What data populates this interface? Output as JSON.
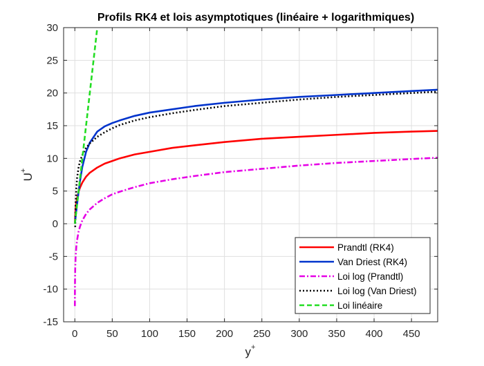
{
  "chart_data": {
    "type": "line",
    "title": "Profils RK4 et lois asymptotiques (linéaire + logarithmiques)",
    "xlabel": "y",
    "xlabel_superscript": "+",
    "ylabel": "U",
    "ylabel_superscript": "+",
    "xlim": [
      -15,
      485
    ],
    "ylim": [
      -15,
      30
    ],
    "xticks": [
      0,
      50,
      100,
      150,
      200,
      250,
      300,
      350,
      400,
      450
    ],
    "yticks": [
      -15,
      -10,
      -5,
      0,
      5,
      10,
      15,
      20,
      25,
      30
    ],
    "grid": true,
    "legend_position": "bottom-right",
    "series": [
      {
        "name": "Prandtl (RK4)",
        "color": "#ff0000",
        "style": "solid",
        "x": [
          0,
          1,
          2,
          3,
          5,
          7,
          10,
          15,
          20,
          30,
          40,
          50,
          60,
          80,
          100,
          130,
          160,
          200,
          250,
          300,
          350,
          400,
          450,
          485
        ],
        "y": [
          0,
          2.2,
          3.2,
          3.9,
          4.9,
          5.55,
          6.3,
          7.2,
          7.8,
          8.6,
          9.2,
          9.6,
          10.0,
          10.6,
          11.0,
          11.6,
          12.0,
          12.5,
          13.0,
          13.3,
          13.6,
          13.9,
          14.1,
          14.2
        ]
      },
      {
        "name": "Van Driest (RK4)",
        "color": "#0033cc",
        "style": "solid",
        "x": [
          0,
          1,
          2,
          3,
          5,
          7,
          10,
          15,
          20,
          30,
          40,
          50,
          60,
          80,
          100,
          130,
          160,
          200,
          250,
          300,
          350,
          400,
          450,
          485
        ],
        "y": [
          0,
          1.0,
          2.0,
          3.0,
          4.9,
          6.6,
          8.7,
          11.0,
          12.4,
          14.1,
          14.9,
          15.4,
          15.8,
          16.5,
          17.0,
          17.5,
          18.0,
          18.5,
          19.0,
          19.4,
          19.7,
          20.0,
          20.3,
          20.5
        ]
      },
      {
        "name": "Loi log (Prandtl)",
        "color": "#e600e6",
        "style": "dashdot",
        "x": [
          0.05,
          0.1,
          0.2,
          0.5,
          1,
          2,
          3,
          5,
          7,
          10,
          15,
          20,
          30,
          40,
          50,
          60,
          80,
          100,
          130,
          160,
          200,
          250,
          300,
          350,
          400,
          450,
          485
        ],
        "y": [
          -12.6,
          -10.9,
          -9.2,
          -6.9,
          -5.2,
          -3.5,
          -2.5,
          -1.2,
          -0.4,
          0.5,
          1.5,
          2.2,
          3.2,
          3.9,
          4.5,
          4.9,
          5.6,
          6.2,
          6.8,
          7.3,
          7.9,
          8.4,
          8.9,
          9.3,
          9.6,
          9.9,
          10.1
        ]
      },
      {
        "name": "Loi log (Van Driest)",
        "color": "#000000",
        "style": "dotted",
        "x": [
          0.5,
          1,
          2,
          3,
          5,
          7,
          10,
          15,
          20,
          30,
          40,
          50,
          60,
          80,
          100,
          130,
          160,
          200,
          250,
          300,
          350,
          400,
          450,
          485
        ],
        "y": [
          -0.5,
          3.0,
          5.5,
          7.0,
          8.6,
          9.6,
          10.5,
          11.6,
          12.3,
          13.3,
          14.0,
          14.6,
          15.1,
          15.8,
          16.3,
          16.9,
          17.4,
          18.0,
          18.5,
          19.0,
          19.4,
          19.7,
          20.0,
          20.2
        ]
      },
      {
        "name": "Loi linéaire",
        "color": "#22dd22",
        "style": "dashed",
        "x": [
          0,
          30
        ],
        "y": [
          0,
          30
        ]
      }
    ]
  }
}
